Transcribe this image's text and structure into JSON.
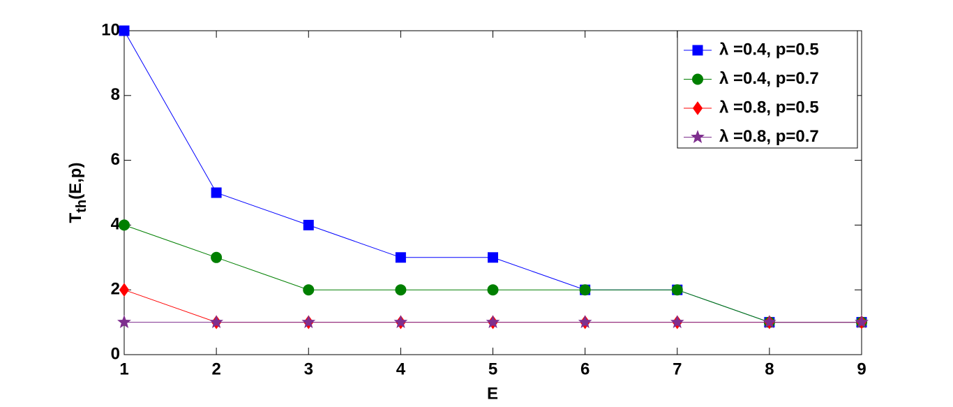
{
  "chart_data": {
    "type": "line",
    "y_label": {
      "main": "T",
      "subscript": "th",
      "suffix": "(E,p)"
    },
    "x_label": "E",
    "x": [
      1,
      2,
      3,
      4,
      5,
      6,
      7,
      8,
      9
    ],
    "xlim": [
      1,
      9
    ],
    "xticks": [
      1,
      2,
      3,
      4,
      5,
      6,
      7,
      8,
      9
    ],
    "ylim": [
      0,
      10
    ],
    "yticks": [
      0,
      2,
      4,
      6,
      8,
      10
    ],
    "legend_position": "upper right",
    "series": [
      {
        "name": "λ =0.4, p=0.5",
        "color": "#0000ff",
        "marker": "square",
        "values": [
          10,
          5,
          4,
          3,
          3,
          2,
          2,
          1,
          1
        ]
      },
      {
        "name": "λ =0.4, p=0.7",
        "color": "#007f00",
        "marker": "circle",
        "values": [
          4,
          3,
          2,
          2,
          2,
          2,
          2,
          1,
          1
        ]
      },
      {
        "name": "λ =0.8, p=0.5",
        "color": "#ff0000",
        "marker": "diamond",
        "values": [
          2,
          1,
          1,
          1,
          1,
          1,
          1,
          1,
          1
        ]
      },
      {
        "name": "λ =0.8, p=0.7",
        "color": "#7e2f8e",
        "marker": "star",
        "values": [
          1,
          1,
          1,
          1,
          1,
          1,
          1,
          1,
          1
        ]
      }
    ]
  }
}
